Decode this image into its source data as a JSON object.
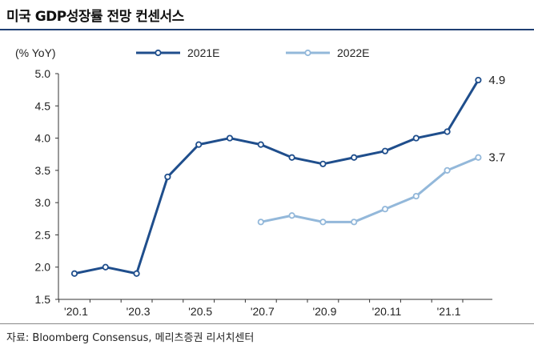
{
  "header": {
    "title": "미국 GDP성장률 전망 컨센서스"
  },
  "footer": {
    "source": "자료: Bloomberg Consensus, 메리츠증권 리서치센터"
  },
  "chart_data": {
    "type": "line",
    "unit_label": "(% YoY)",
    "title": "미국 GDP성장률 전망 컨센서스",
    "x_tick_labels": [
      "'20.1",
      "'20.3",
      "'20.5",
      "'20.7",
      "'20.9",
      "'20.11",
      "'21.1"
    ],
    "y_ticks": [
      "1.5",
      "2.0",
      "2.5",
      "3.0",
      "3.5",
      "4.0",
      "4.5",
      "5.0"
    ],
    "ylim": [
      1.5,
      5.0
    ],
    "legend_placement": "top",
    "grid": false,
    "x": [
      "'20.1",
      "'20.2",
      "'20.3",
      "'20.4",
      "'20.5",
      "'20.6",
      "'20.7",
      "'20.8",
      "'20.9",
      "'20.10",
      "'20.11",
      "'20.12",
      "'21.1",
      "'21.2"
    ],
    "series": [
      {
        "name": "2021E",
        "color": "#1f4e8c",
        "values": [
          1.9,
          2.0,
          1.9,
          3.4,
          3.9,
          4.0,
          3.9,
          3.7,
          3.6,
          3.7,
          3.8,
          4.0,
          4.1,
          4.9
        ],
        "end_label": "4.9"
      },
      {
        "name": "2022E",
        "color": "#93b8da",
        "values": [
          null,
          null,
          null,
          null,
          null,
          null,
          2.7,
          2.8,
          2.7,
          2.7,
          2.9,
          3.1,
          3.5,
          3.7
        ],
        "end_label": "3.7"
      }
    ]
  }
}
